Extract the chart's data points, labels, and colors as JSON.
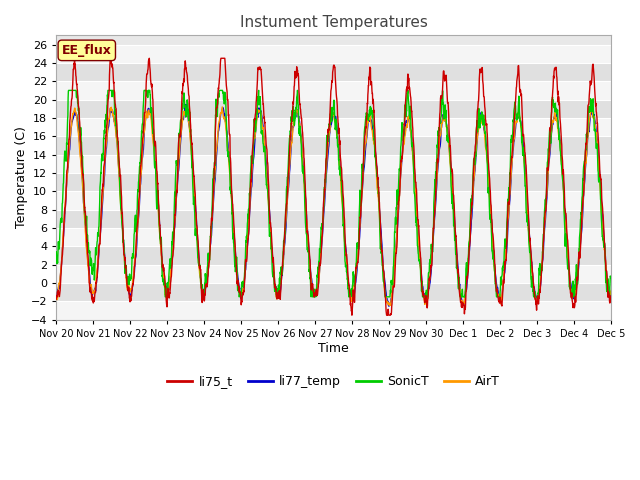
{
  "title": "Instument Temperatures",
  "xlabel": "Time",
  "ylabel": "Temperature (C)",
  "ylim": [
    -4,
    27
  ],
  "yticks": [
    -4,
    -2,
    0,
    2,
    4,
    6,
    8,
    10,
    12,
    14,
    16,
    18,
    20,
    22,
    24,
    26
  ],
  "colors": {
    "li75_t": "#cc0000",
    "li77_temp": "#0000cc",
    "SonicT": "#00cc00",
    "AirT": "#ff9900"
  },
  "legend_label": "EE_flux",
  "fig_bg_color": "#ffffff",
  "plot_bg_color": "#e8e8e8",
  "band_color_light": "#f5f5f5",
  "band_color_dark": "#e0e0e0",
  "grid_color": "#ffffff",
  "num_days": 15,
  "tick_labels": [
    "Nov 20",
    "Nov 21",
    "Nov 22",
    "Nov 23",
    "Nov 24",
    "Nov 25",
    "Nov 26",
    "Nov 27",
    "Nov 28",
    "Nov 29",
    "Nov 30",
    "Dec 1",
    "Dec 2",
    "Dec 3",
    "Dec 4",
    "Dec 5"
  ],
  "annotation_box_color": "#ffff99",
  "annotation_text_color": "#800000",
  "annotation_border_color": "#800000"
}
